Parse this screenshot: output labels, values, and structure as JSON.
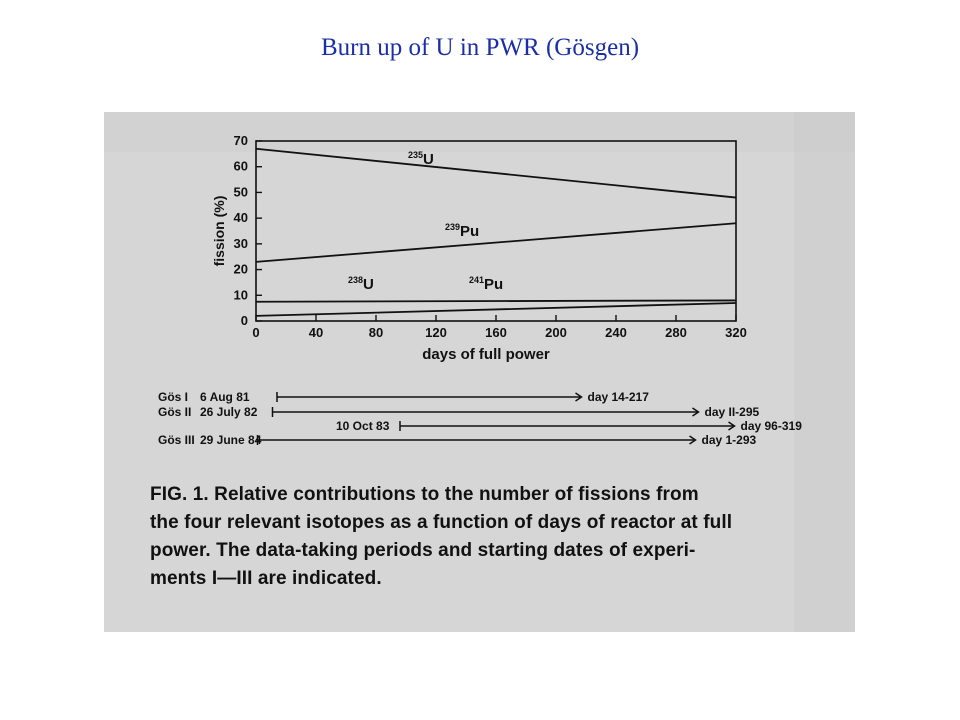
{
  "slide": {
    "title": "Burn up of U in PWR (Gösgen)"
  },
  "chart_data": {
    "type": "line",
    "ylabel": "fission (%)",
    "xlabel": "days of full power",
    "xlim": [
      0,
      320
    ],
    "ylim": [
      0,
      70
    ],
    "x_ticks": [
      0,
      40,
      80,
      120,
      160,
      200,
      240,
      280,
      320
    ],
    "y_ticks": [
      0,
      10,
      20,
      30,
      40,
      50,
      60,
      70
    ],
    "series": [
      {
        "name": "235U",
        "label_mass": "235",
        "label_element": "U",
        "x": [
          0,
          320
        ],
        "y": [
          67,
          48
        ]
      },
      {
        "name": "239Pu",
        "label_mass": "239",
        "label_element": "Pu",
        "x": [
          0,
          320
        ],
        "y": [
          23,
          38
        ]
      },
      {
        "name": "238U",
        "label_mass": "238",
        "label_element": "U",
        "x": [
          0,
          320
        ],
        "y": [
          7.5,
          8
        ]
      },
      {
        "name": "241Pu",
        "label_mass": "241",
        "label_element": "Pu",
        "x": [
          0,
          320
        ],
        "y": [
          2,
          7
        ]
      }
    ],
    "grid": false,
    "legend": "inline labels"
  },
  "periods": [
    {
      "label": "Gös I",
      "date": "6 Aug 81",
      "bars": [
        {
          "start": 14,
          "end": 217,
          "text": "day 14-217"
        }
      ]
    },
    {
      "label": "Gös II",
      "date": "26 July 82",
      "bars": [
        {
          "start": 11,
          "end": 295,
          "text": "day II-295"
        }
      ]
    },
    {
      "label": "",
      "date": "10 Oct 83",
      "bars": [
        {
          "start": 96,
          "end": 319,
          "text": "day 96-319"
        }
      ]
    },
    {
      "label": "Gös III",
      "date": "29 June 84",
      "bars": [
        {
          "start": 1,
          "end": 293,
          "text": "day 1-293"
        }
      ]
    }
  ],
  "caption": {
    "lines": [
      "FIG. 1.  Relative contributions to the number of fissions from",
      "the four relevant isotopes as a function of days of reactor at full",
      "power. The data-taking periods and starting dates of experi-",
      "ments I—III are indicated."
    ]
  },
  "colors": {
    "title": "#1a2ea8",
    "scan_bg": "#d9d9d9",
    "ink": "#111111"
  }
}
